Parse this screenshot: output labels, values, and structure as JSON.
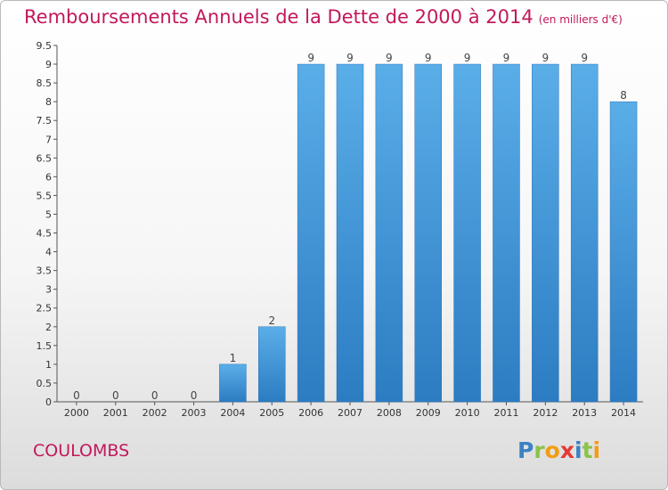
{
  "header": {
    "title": "Remboursements Annuels de la Dette de 2000 à 2014",
    "unit": "(en milliers d'€)"
  },
  "footer": {
    "city": "COULOMBS",
    "logo": [
      "P",
      "r",
      "o",
      "x",
      "i",
      "t",
      "i"
    ],
    "logo_colors": [
      "#3b82c4",
      "#8bc34a",
      "#f39c12",
      "#e53935",
      "#3b82c4",
      "#8bc34a",
      "#f39c12"
    ]
  },
  "chart_data": {
    "type": "bar",
    "categories": [
      "2000",
      "2001",
      "2002",
      "2003",
      "2004",
      "2005",
      "2006",
      "2007",
      "2008",
      "2009",
      "2010",
      "2011",
      "2012",
      "2013",
      "2014"
    ],
    "values": [
      0,
      0,
      0,
      0,
      1,
      2,
      9,
      9,
      9,
      9,
      9,
      9,
      9,
      9,
      8
    ],
    "value_labels": [
      "0",
      "0",
      "0",
      "0",
      "1",
      "2",
      "9",
      "9",
      "9",
      "9",
      "9",
      "9",
      "9",
      "9",
      "8"
    ],
    "yticks": [
      0,
      0.5,
      1,
      1.5,
      2,
      2.5,
      3,
      3.5,
      4,
      4.5,
      5,
      5.5,
      6,
      6.5,
      7,
      7.5,
      8,
      8.5,
      9,
      9.5
    ],
    "ytick_labels": [
      "0",
      "0.5",
      "1",
      "1.5",
      "2",
      "2.5",
      "3",
      "3.5",
      "4",
      "4.5",
      "5",
      "5.5",
      "6",
      "6.5",
      "7",
      "7.5",
      "8",
      "8.5",
      "9",
      "9.5"
    ],
    "ylim": [
      0,
      9.5
    ],
    "bar_color": "#3d8fd6",
    "grid": false,
    "legend": "none"
  }
}
